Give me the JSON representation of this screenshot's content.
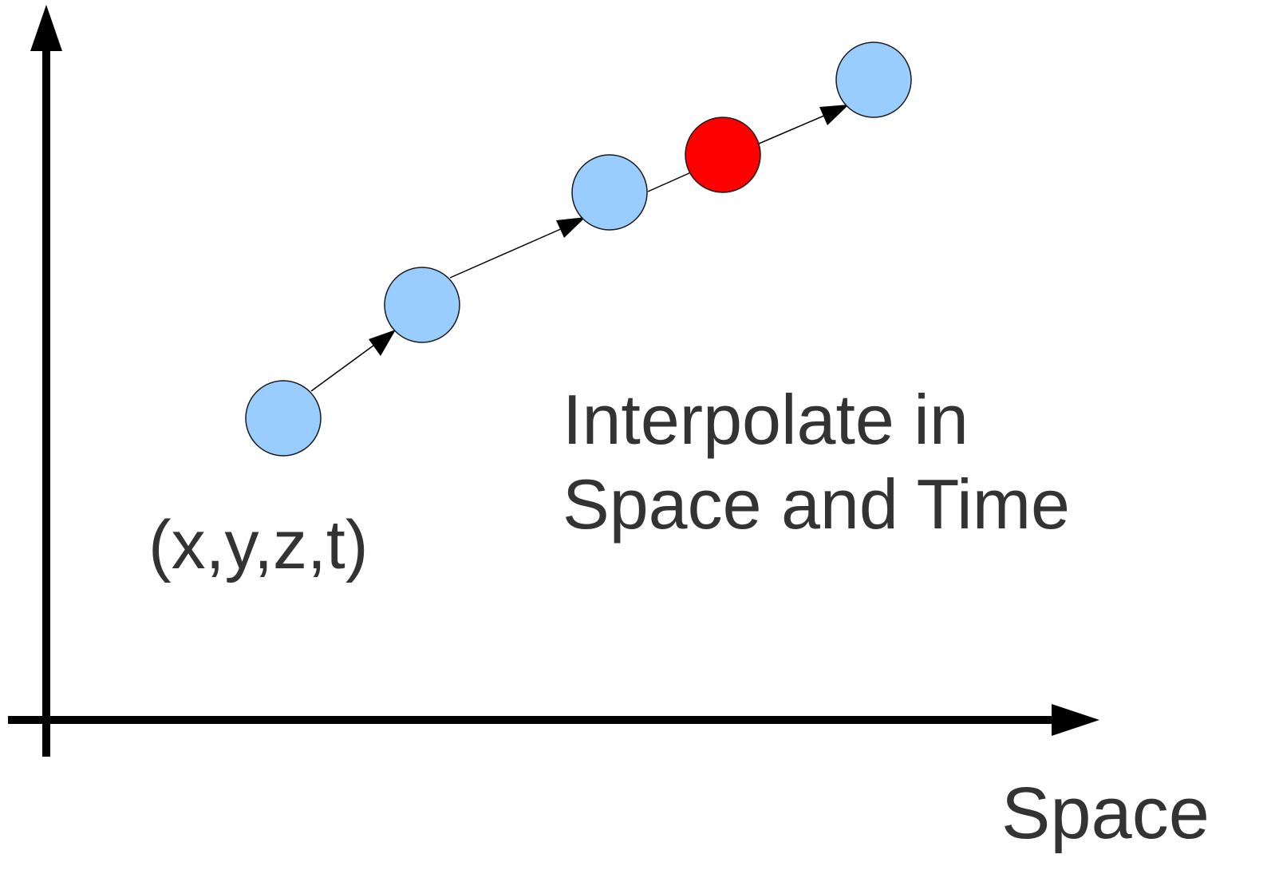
{
  "labels": {
    "coordinate": "(x,y,z,t)",
    "caption_line1": "Interpolate in",
    "caption_line2": "Space and Time",
    "x_axis": "Space"
  },
  "colors": {
    "axis": "#000000",
    "point_fill": "#99ccff",
    "interpolated_fill": "#ff0000",
    "point_stroke": "#1a1a1a",
    "text": "#333333"
  },
  "points": [
    {
      "kind": "sample"
    },
    {
      "kind": "sample"
    },
    {
      "kind": "sample"
    },
    {
      "kind": "interpolated"
    },
    {
      "kind": "sample"
    }
  ]
}
